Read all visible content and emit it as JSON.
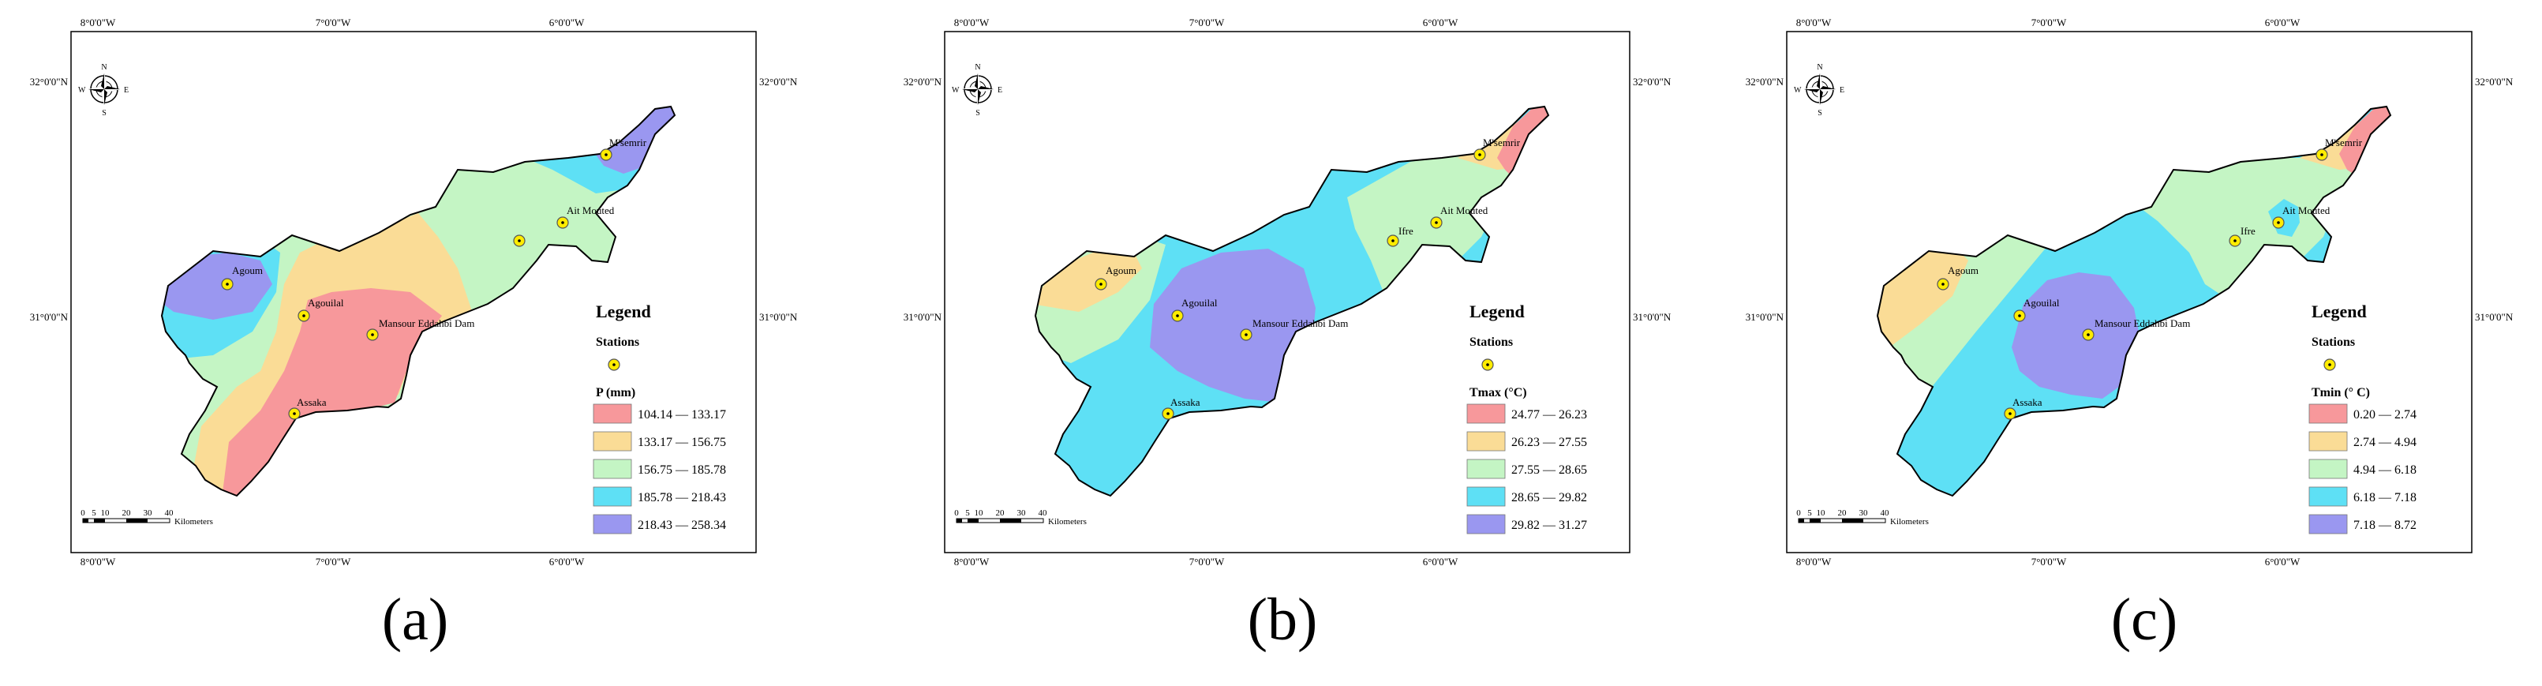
{
  "axes": {
    "top": [
      "8°0'0\"W",
      "7°0'0\"W",
      "6°0'0\"W"
    ],
    "bottom": [
      "8°0'0\"W",
      "7°0'0\"W",
      "6°0'0\"W"
    ],
    "left": [
      "32°0'0\"N",
      "31°0'0\"N"
    ],
    "right": [
      "32°0'0\"N",
      "31°0'0\"N"
    ]
  },
  "north_arrow": {
    "n": "N",
    "s": "S",
    "e": "E",
    "w": "W"
  },
  "scale_bar": {
    "ticks": [
      "0",
      "5",
      "10",
      "20",
      "30",
      "40"
    ],
    "unit": "Kilometers"
  },
  "stations": [
    "M'semrir",
    "Ait Mouted",
    "Ifre",
    "Agoum",
    "Agouilal",
    "Mansour Eddahbi Dam",
    "Assaka"
  ],
  "legend_title": "Legend",
  "legend_stations_label": "Stations",
  "colors": [
    "#f7989b",
    "#fadc96",
    "#c4f5c4",
    "#5ee0f5",
    "#9a97f0"
  ],
  "panels": [
    {
      "label": "(a)",
      "variable": "P (mm)",
      "classes": [
        "104.14 — 133.17",
        "133.17 — 156.75",
        "156.75 — 185.78",
        "185.78 — 218.43",
        "218.43 — 258.34"
      ]
    },
    {
      "label": "(b)",
      "variable": "Tmax (°C)",
      "classes": [
        "24.77 — 26.23",
        "26.23 — 27.55",
        "27.55 — 28.65",
        "28.65 — 29.82",
        "29.82 — 31.27"
      ]
    },
    {
      "label": "(c)",
      "variable": "Tmin (° C)",
      "classes": [
        "0.20 — 2.74",
        "2.74 — 4.94",
        "4.94 — 6.18",
        "6.18 — 7.18",
        "7.18 — 8.72"
      ]
    }
  ]
}
